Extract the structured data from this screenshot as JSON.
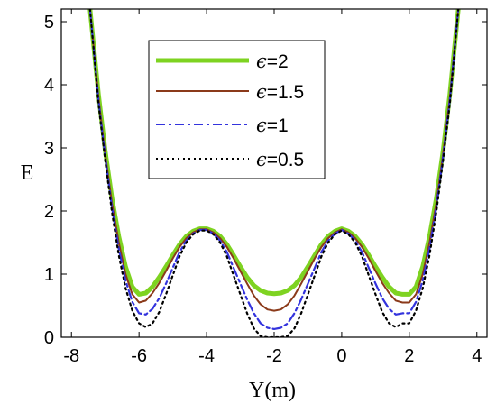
{
  "chart_data": {
    "type": "line",
    "title": "",
    "xlabel": "Y(m)",
    "ylabel": "E",
    "xlim": [
      -8.3,
      4.3
    ],
    "ylim": [
      0,
      5.2
    ],
    "xticks": [
      -8,
      -6,
      -4,
      -2,
      0,
      2,
      4
    ],
    "yticks": [
      0,
      1,
      2,
      3,
      4,
      5
    ],
    "grid": false,
    "legend_position": "top-center",
    "x_samples_note_free": true,
    "x": [
      -7.45,
      -7.2,
      -7.0,
      -6.8,
      -6.6,
      -6.4,
      -6.2,
      -6.0,
      -5.8,
      -5.6,
      -5.4,
      -5.2,
      -5.0,
      -4.8,
      -4.6,
      -4.4,
      -4.2,
      -4.0,
      -3.8,
      -3.6,
      -3.4,
      -3.2,
      -3.0,
      -2.8,
      -2.6,
      -2.4,
      -2.2,
      -2.0,
      -1.8,
      -1.6,
      -1.4,
      -1.2,
      -1.0,
      -0.8,
      -0.6,
      -0.4,
      -0.2,
      0.0,
      0.2,
      0.4,
      0.6,
      0.8,
      1.0,
      1.2,
      1.4,
      1.6,
      1.8,
      2.0,
      2.2,
      2.4,
      2.6,
      2.8,
      3.0,
      3.2,
      3.45
    ],
    "series": [
      {
        "name": "ϵ=2",
        "color": "#7ed321",
        "style": "solid-thick",
        "values": [
          5.2,
          3.85,
          2.95,
          2.2,
          1.6,
          1.12,
          0.8,
          0.68,
          0.7,
          0.8,
          0.95,
          1.12,
          1.3,
          1.47,
          1.6,
          1.68,
          1.72,
          1.72,
          1.68,
          1.6,
          1.47,
          1.3,
          1.12,
          0.95,
          0.82,
          0.74,
          0.7,
          0.69,
          0.7,
          0.74,
          0.82,
          0.95,
          1.12,
          1.3,
          1.47,
          1.6,
          1.68,
          1.72,
          1.68,
          1.6,
          1.47,
          1.3,
          1.12,
          0.95,
          0.8,
          0.7,
          0.68,
          0.68,
          0.8,
          1.12,
          1.6,
          2.2,
          2.95,
          3.85,
          5.2
        ]
      },
      {
        "name": "ϵ=1.5",
        "color": "#8b3a1a",
        "style": "solid",
        "values": [
          5.2,
          3.8,
          2.9,
          2.12,
          1.5,
          1.0,
          0.68,
          0.55,
          0.58,
          0.7,
          0.86,
          1.05,
          1.25,
          1.43,
          1.57,
          1.66,
          1.71,
          1.71,
          1.66,
          1.57,
          1.43,
          1.25,
          1.05,
          0.85,
          0.66,
          0.52,
          0.44,
          0.42,
          0.44,
          0.52,
          0.66,
          0.85,
          1.05,
          1.25,
          1.43,
          1.57,
          1.66,
          1.71,
          1.66,
          1.57,
          1.43,
          1.25,
          1.05,
          0.86,
          0.7,
          0.58,
          0.55,
          0.55,
          0.68,
          1.0,
          1.5,
          2.12,
          2.9,
          3.8,
          5.2
        ]
      },
      {
        "name": "ϵ=1",
        "color": "#3333dd",
        "style": "dashdot",
        "values": [
          5.2,
          3.75,
          2.85,
          2.05,
          1.4,
          0.9,
          0.56,
          0.38,
          0.36,
          0.45,
          0.62,
          0.85,
          1.1,
          1.35,
          1.53,
          1.64,
          1.7,
          1.7,
          1.64,
          1.53,
          1.35,
          1.1,
          0.85,
          0.6,
          0.38,
          0.22,
          0.15,
          0.13,
          0.15,
          0.22,
          0.38,
          0.6,
          0.85,
          1.1,
          1.35,
          1.53,
          1.64,
          1.7,
          1.64,
          1.53,
          1.35,
          1.1,
          0.85,
          0.62,
          0.45,
          0.36,
          0.38,
          0.38,
          0.56,
          0.9,
          1.4,
          2.05,
          2.85,
          3.75,
          5.2
        ]
      },
      {
        "name": "ϵ=0.5",
        "color": "#000000",
        "style": "dotted",
        "values": [
          5.2,
          3.7,
          2.8,
          1.98,
          1.3,
          0.78,
          0.42,
          0.22,
          0.16,
          0.22,
          0.4,
          0.68,
          0.98,
          1.28,
          1.5,
          1.63,
          1.69,
          1.69,
          1.63,
          1.5,
          1.28,
          0.98,
          0.68,
          0.38,
          0.14,
          0.02,
          0.0,
          0.0,
          0.0,
          0.02,
          0.14,
          0.38,
          0.68,
          0.98,
          1.28,
          1.5,
          1.63,
          1.69,
          1.63,
          1.5,
          1.28,
          0.98,
          0.68,
          0.4,
          0.22,
          0.16,
          0.22,
          0.22,
          0.42,
          0.78,
          1.3,
          1.98,
          2.8,
          3.7,
          5.2
        ]
      }
    ]
  },
  "legend": {
    "items": [
      {
        "eps": "ϵ",
        "label": "=2"
      },
      {
        "eps": "ϵ",
        "label": "=1.5"
      },
      {
        "eps": "ϵ",
        "label": "=1"
      },
      {
        "eps": "ϵ",
        "label": "=0.5"
      }
    ]
  }
}
